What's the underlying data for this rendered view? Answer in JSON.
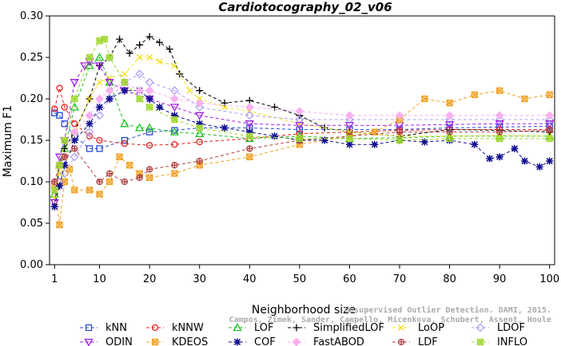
{
  "chart_data": {
    "type": "line",
    "title": "Cardiotocography_02_v06",
    "xlabel": "Neighborhood size",
    "ylabel": "Maximum F1",
    "xlim": [
      0,
      101
    ],
    "ylim": [
      0,
      0.3
    ],
    "xticks": [
      1,
      10,
      20,
      30,
      40,
      50,
      60,
      70,
      80,
      90,
      100
    ],
    "yticks": [
      "0.00",
      "0.05",
      "0.10",
      "0.15",
      "0.20",
      "0.25",
      "0.30"
    ],
    "grid": false,
    "legend_position": "bottom",
    "watermark": [
      "Unsupervised Outlier Detection. DAMI, 2015.",
      "Campos, Zimek, Sander, Campello, Micenkova, Schubert, Assent, Houle"
    ],
    "series": [
      {
        "name": "kNN",
        "color": "#2a4cd0",
        "marker": "square",
        "dash": "4,3",
        "x": [
          1,
          2,
          3,
          5,
          8,
          10,
          15,
          20,
          25,
          30,
          40,
          50,
          60,
          70,
          80,
          90,
          100
        ],
        "values": [
          0.183,
          0.18,
          0.17,
          0.155,
          0.14,
          0.14,
          0.15,
          0.16,
          0.162,
          0.165,
          0.165,
          0.163,
          0.163,
          0.163,
          0.165,
          0.166,
          0.167
        ]
      },
      {
        "name": "kNNW",
        "color": "#e02020",
        "marker": "circle",
        "dash": "4,3",
        "x": [
          1,
          2,
          3,
          5,
          8,
          10,
          15,
          20,
          25,
          30,
          40,
          50,
          60,
          70,
          80,
          90,
          100
        ],
        "values": [
          0.188,
          0.213,
          0.19,
          0.17,
          0.155,
          0.15,
          0.146,
          0.144,
          0.145,
          0.148,
          0.152,
          0.158,
          0.16,
          0.162,
          0.163,
          0.163,
          0.163
        ]
      },
      {
        "name": "LOF",
        "color": "#20c020",
        "marker": "triangle",
        "dash": "4,3",
        "x": [
          1,
          2,
          3,
          5,
          8,
          10,
          12,
          15,
          18,
          20,
          25,
          30,
          40,
          50,
          60,
          70,
          80,
          90,
          100
        ],
        "values": [
          0.085,
          0.12,
          0.14,
          0.19,
          0.24,
          0.25,
          0.22,
          0.17,
          0.165,
          0.165,
          0.16,
          0.158,
          0.152,
          0.155,
          0.152,
          0.153,
          0.155,
          0.155,
          0.155
        ]
      },
      {
        "name": "SimplifiedLOF",
        "color": "#000000",
        "marker": "plus",
        "dash": "4,3",
        "x": [
          1,
          2,
          3,
          5,
          8,
          10,
          12,
          14,
          16,
          18,
          20,
          22,
          24,
          26,
          30,
          35,
          40,
          45,
          50,
          55,
          60,
          70,
          80,
          90,
          100
        ],
        "values": [
          0.07,
          0.12,
          0.14,
          0.16,
          0.2,
          0.24,
          0.25,
          0.272,
          0.255,
          0.265,
          0.275,
          0.268,
          0.26,
          0.23,
          0.21,
          0.195,
          0.198,
          0.19,
          0.18,
          0.165,
          0.16,
          0.155,
          0.163,
          0.162,
          0.16
        ]
      },
      {
        "name": "LoOP",
        "color": "#f0e020",
        "marker": "cross",
        "dash": "4,3",
        "x": [
          1,
          2,
          3,
          5,
          8,
          10,
          12,
          15,
          18,
          20,
          22,
          25,
          28,
          30,
          35,
          40,
          50,
          60,
          70,
          80,
          90,
          100
        ],
        "values": [
          0.08,
          0.11,
          0.13,
          0.16,
          0.2,
          0.22,
          0.225,
          0.23,
          0.25,
          0.25,
          0.245,
          0.24,
          0.21,
          0.2,
          0.19,
          0.185,
          0.17,
          0.16,
          0.155,
          0.155,
          0.156,
          0.155
        ]
      },
      {
        "name": "LDOF",
        "color": "#b0a0f0",
        "marker": "diamond",
        "dash": "4,3",
        "x": [
          1,
          2,
          3,
          5,
          8,
          10,
          12,
          15,
          18,
          20,
          25,
          30,
          40,
          50,
          60,
          70,
          80,
          90,
          100
        ],
        "values": [
          0.1,
          0.1,
          0.11,
          0.13,
          0.16,
          0.18,
          0.2,
          0.22,
          0.23,
          0.22,
          0.21,
          0.19,
          0.18,
          0.175,
          0.175,
          0.175,
          0.175,
          0.175,
          0.175
        ]
      },
      {
        "name": "ODIN",
        "color": "#a020e0",
        "marker": "triangle-down",
        "dash": "4,3",
        "x": [
          1,
          2,
          3,
          5,
          7,
          8,
          10,
          12,
          15,
          20,
          25,
          30,
          40,
          50,
          60,
          70,
          80,
          90,
          100
        ],
        "values": [
          0.075,
          0.13,
          0.15,
          0.22,
          0.24,
          0.245,
          0.24,
          0.22,
          0.21,
          0.2,
          0.19,
          0.18,
          0.17,
          0.168,
          0.168,
          0.168,
          0.169,
          0.17,
          0.17
        ]
      },
      {
        "name": "KDEOS",
        "color": "#f0a020",
        "marker": "square-x",
        "dash": "4,3",
        "x": [
          1,
          2,
          3,
          4,
          5,
          8,
          10,
          12,
          14,
          16,
          18,
          20,
          25,
          30,
          40,
          50,
          60,
          65,
          70,
          75,
          80,
          85,
          90,
          95,
          100
        ],
        "values": [
          0.095,
          0.048,
          0.1,
          0.115,
          0.09,
          0.09,
          0.085,
          0.1,
          0.13,
          0.12,
          0.11,
          0.105,
          0.11,
          0.12,
          0.13,
          0.145,
          0.155,
          0.16,
          0.175,
          0.2,
          0.195,
          0.205,
          0.21,
          0.2,
          0.205
        ]
      },
      {
        "name": "COF",
        "color": "#101090",
        "marker": "asterisk",
        "dash": "4,3",
        "x": [
          1,
          2,
          3,
          5,
          8,
          10,
          12,
          15,
          18,
          20,
          22,
          25,
          30,
          35,
          40,
          45,
          50,
          55,
          60,
          65,
          70,
          75,
          80,
          85,
          88,
          90,
          93,
          95,
          98,
          100
        ],
        "values": [
          0.07,
          0.095,
          0.12,
          0.15,
          0.17,
          0.19,
          0.2,
          0.21,
          0.21,
          0.2,
          0.19,
          0.18,
          0.17,
          0.165,
          0.16,
          0.155,
          0.15,
          0.15,
          0.145,
          0.145,
          0.15,
          0.148,
          0.15,
          0.145,
          0.128,
          0.13,
          0.14,
          0.125,
          0.118,
          0.125
        ]
      },
      {
        "name": "FastABOD",
        "color": "#f8b0f0",
        "marker": "diamond-filled",
        "dash": "4,3",
        "x": [
          1,
          2,
          3,
          5,
          8,
          10,
          12,
          15,
          18,
          20,
          25,
          30,
          40,
          50,
          60,
          70,
          80,
          90,
          100
        ],
        "values": [
          0.1,
          0.12,
          0.13,
          0.16,
          0.18,
          0.2,
          0.21,
          0.22,
          0.21,
          0.21,
          0.2,
          0.195,
          0.19,
          0.185,
          0.18,
          0.18,
          0.18,
          0.18,
          0.18
        ]
      },
      {
        "name": "LDF",
        "color": "#b04040",
        "marker": "circle-plus",
        "dash": "4,3",
        "x": [
          1,
          2,
          3,
          5,
          10,
          12,
          15,
          18,
          20,
          25,
          30,
          40,
          50,
          60,
          70,
          80,
          90,
          100
        ],
        "values": [
          0.1,
          0.12,
          0.13,
          0.14,
          0.1,
          0.11,
          0.1,
          0.105,
          0.115,
          0.12,
          0.125,
          0.14,
          0.15,
          0.155,
          0.16,
          0.16,
          0.16,
          0.162
        ]
      },
      {
        "name": "INFLO",
        "color": "#a0d830",
        "marker": "square-star",
        "dash": "4,3",
        "x": [
          1,
          2,
          3,
          5,
          8,
          10,
          11,
          12,
          15,
          18,
          20,
          25,
          30,
          40,
          50,
          60,
          70,
          80,
          90,
          100
        ],
        "values": [
          0.09,
          0.12,
          0.15,
          0.2,
          0.25,
          0.27,
          0.272,
          0.25,
          0.22,
          0.2,
          0.19,
          0.175,
          0.165,
          0.155,
          0.152,
          0.152,
          0.15,
          0.152,
          0.152,
          0.152
        ]
      }
    ]
  }
}
